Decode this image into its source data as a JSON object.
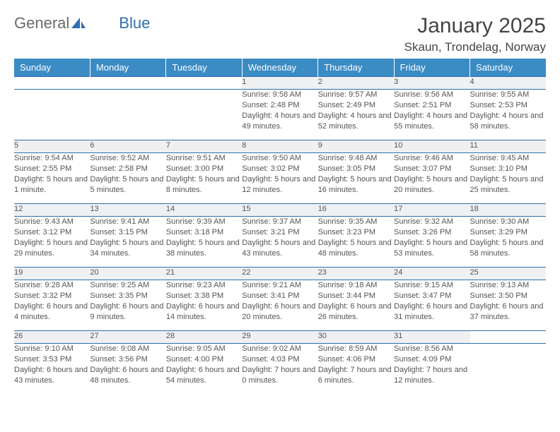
{
  "logo": {
    "text1": "General",
    "text2": "Blue"
  },
  "title": {
    "month": "January 2025",
    "location": "Skaun, Trondelag, Norway"
  },
  "colors": {
    "header_bg": "#3b8bc4",
    "header_text": "#ffffff",
    "rule": "#2f6fb0",
    "daynum_bg": "#eef0f2",
    "body_text": "#555555",
    "logo_grey": "#6a6a6a",
    "logo_blue": "#2f6fb0",
    "page_bg": "#ffffff"
  },
  "fonts": {
    "title_pt": 30,
    "location_pt": 17,
    "header_pt": 13,
    "cell_pt": 11
  },
  "weekdays": [
    "Sunday",
    "Monday",
    "Tuesday",
    "Wednesday",
    "Thursday",
    "Friday",
    "Saturday"
  ],
  "weeks": [
    [
      null,
      null,
      null,
      {
        "day": "1",
        "sunrise": "Sunrise: 9:58 AM",
        "sunset": "Sunset: 2:48 PM",
        "daylight": "Daylight: 4 hours and 49 minutes."
      },
      {
        "day": "2",
        "sunrise": "Sunrise: 9:57 AM",
        "sunset": "Sunset: 2:49 PM",
        "daylight": "Daylight: 4 hours and 52 minutes."
      },
      {
        "day": "3",
        "sunrise": "Sunrise: 9:56 AM",
        "sunset": "Sunset: 2:51 PM",
        "daylight": "Daylight: 4 hours and 55 minutes."
      },
      {
        "day": "4",
        "sunrise": "Sunrise: 9:55 AM",
        "sunset": "Sunset: 2:53 PM",
        "daylight": "Daylight: 4 hours and 58 minutes."
      }
    ],
    [
      {
        "day": "5",
        "sunrise": "Sunrise: 9:54 AM",
        "sunset": "Sunset: 2:55 PM",
        "daylight": "Daylight: 5 hours and 1 minute."
      },
      {
        "day": "6",
        "sunrise": "Sunrise: 9:52 AM",
        "sunset": "Sunset: 2:58 PM",
        "daylight": "Daylight: 5 hours and 5 minutes."
      },
      {
        "day": "7",
        "sunrise": "Sunrise: 9:51 AM",
        "sunset": "Sunset: 3:00 PM",
        "daylight": "Daylight: 5 hours and 8 minutes."
      },
      {
        "day": "8",
        "sunrise": "Sunrise: 9:50 AM",
        "sunset": "Sunset: 3:02 PM",
        "daylight": "Daylight: 5 hours and 12 minutes."
      },
      {
        "day": "9",
        "sunrise": "Sunrise: 9:48 AM",
        "sunset": "Sunset: 3:05 PM",
        "daylight": "Daylight: 5 hours and 16 minutes."
      },
      {
        "day": "10",
        "sunrise": "Sunrise: 9:46 AM",
        "sunset": "Sunset: 3:07 PM",
        "daylight": "Daylight: 5 hours and 20 minutes."
      },
      {
        "day": "11",
        "sunrise": "Sunrise: 9:45 AM",
        "sunset": "Sunset: 3:10 PM",
        "daylight": "Daylight: 5 hours and 25 minutes."
      }
    ],
    [
      {
        "day": "12",
        "sunrise": "Sunrise: 9:43 AM",
        "sunset": "Sunset: 3:12 PM",
        "daylight": "Daylight: 5 hours and 29 minutes."
      },
      {
        "day": "13",
        "sunrise": "Sunrise: 9:41 AM",
        "sunset": "Sunset: 3:15 PM",
        "daylight": "Daylight: 5 hours and 34 minutes."
      },
      {
        "day": "14",
        "sunrise": "Sunrise: 9:39 AM",
        "sunset": "Sunset: 3:18 PM",
        "daylight": "Daylight: 5 hours and 38 minutes."
      },
      {
        "day": "15",
        "sunrise": "Sunrise: 9:37 AM",
        "sunset": "Sunset: 3:21 PM",
        "daylight": "Daylight: 5 hours and 43 minutes."
      },
      {
        "day": "16",
        "sunrise": "Sunrise: 9:35 AM",
        "sunset": "Sunset: 3:23 PM",
        "daylight": "Daylight: 5 hours and 48 minutes."
      },
      {
        "day": "17",
        "sunrise": "Sunrise: 9:32 AM",
        "sunset": "Sunset: 3:26 PM",
        "daylight": "Daylight: 5 hours and 53 minutes."
      },
      {
        "day": "18",
        "sunrise": "Sunrise: 9:30 AM",
        "sunset": "Sunset: 3:29 PM",
        "daylight": "Daylight: 5 hours and 58 minutes."
      }
    ],
    [
      {
        "day": "19",
        "sunrise": "Sunrise: 9:28 AM",
        "sunset": "Sunset: 3:32 PM",
        "daylight": "Daylight: 6 hours and 4 minutes."
      },
      {
        "day": "20",
        "sunrise": "Sunrise: 9:25 AM",
        "sunset": "Sunset: 3:35 PM",
        "daylight": "Daylight: 6 hours and 9 minutes."
      },
      {
        "day": "21",
        "sunrise": "Sunrise: 9:23 AM",
        "sunset": "Sunset: 3:38 PM",
        "daylight": "Daylight: 6 hours and 14 minutes."
      },
      {
        "day": "22",
        "sunrise": "Sunrise: 9:21 AM",
        "sunset": "Sunset: 3:41 PM",
        "daylight": "Daylight: 6 hours and 20 minutes."
      },
      {
        "day": "23",
        "sunrise": "Sunrise: 9:18 AM",
        "sunset": "Sunset: 3:44 PM",
        "daylight": "Daylight: 6 hours and 26 minutes."
      },
      {
        "day": "24",
        "sunrise": "Sunrise: 9:15 AM",
        "sunset": "Sunset: 3:47 PM",
        "daylight": "Daylight: 6 hours and 31 minutes."
      },
      {
        "day": "25",
        "sunrise": "Sunrise: 9:13 AM",
        "sunset": "Sunset: 3:50 PM",
        "daylight": "Daylight: 6 hours and 37 minutes."
      }
    ],
    [
      {
        "day": "26",
        "sunrise": "Sunrise: 9:10 AM",
        "sunset": "Sunset: 3:53 PM",
        "daylight": "Daylight: 6 hours and 43 minutes."
      },
      {
        "day": "27",
        "sunrise": "Sunrise: 9:08 AM",
        "sunset": "Sunset: 3:56 PM",
        "daylight": "Daylight: 6 hours and 48 minutes."
      },
      {
        "day": "28",
        "sunrise": "Sunrise: 9:05 AM",
        "sunset": "Sunset: 4:00 PM",
        "daylight": "Daylight: 6 hours and 54 minutes."
      },
      {
        "day": "29",
        "sunrise": "Sunrise: 9:02 AM",
        "sunset": "Sunset: 4:03 PM",
        "daylight": "Daylight: 7 hours and 0 minutes."
      },
      {
        "day": "30",
        "sunrise": "Sunrise: 8:59 AM",
        "sunset": "Sunset: 4:06 PM",
        "daylight": "Daylight: 7 hours and 6 minutes."
      },
      {
        "day": "31",
        "sunrise": "Sunrise: 8:56 AM",
        "sunset": "Sunset: 4:09 PM",
        "daylight": "Daylight: 7 hours and 12 minutes."
      },
      null
    ]
  ]
}
